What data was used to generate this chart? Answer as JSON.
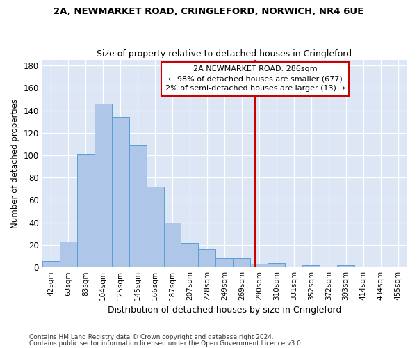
{
  "title1": "2A, NEWMARKET ROAD, CRINGLEFORD, NORWICH, NR4 6UE",
  "title2": "Size of property relative to detached houses in Cringleford",
  "xlabel": "Distribution of detached houses by size in Cringleford",
  "ylabel": "Number of detached properties",
  "bin_labels": [
    "42sqm",
    "63sqm",
    "83sqm",
    "104sqm",
    "125sqm",
    "145sqm",
    "166sqm",
    "187sqm",
    "207sqm",
    "228sqm",
    "249sqm",
    "269sqm",
    "290sqm",
    "310sqm",
    "331sqm",
    "352sqm",
    "372sqm",
    "393sqm",
    "414sqm",
    "434sqm",
    "455sqm"
  ],
  "bar_heights": [
    6,
    23,
    101,
    146,
    134,
    109,
    72,
    40,
    22,
    16,
    8,
    8,
    3,
    4,
    0,
    2,
    0,
    2,
    0,
    0,
    0
  ],
  "bar_color": "#aec6e8",
  "bar_edgecolor": "#5a9fd4",
  "vline_color": "#cc0000",
  "annotation_title": "2A NEWMARKET ROAD: 286sqm",
  "annotation_line1": "← 98% of detached houses are smaller (677)",
  "annotation_line2": "2% of semi-detached houses are larger (13) →",
  "annotation_box_color": "#ffffff",
  "annotation_box_edgecolor": "#cc0000",
  "ylim": [
    0,
    185
  ],
  "yticks": [
    0,
    20,
    40,
    60,
    80,
    100,
    120,
    140,
    160,
    180
  ],
  "background_color": "#dce6f5",
  "footer1": "Contains HM Land Registry data © Crown copyright and database right 2024.",
  "footer2": "Contains public sector information licensed under the Open Government Licence v3.0."
}
